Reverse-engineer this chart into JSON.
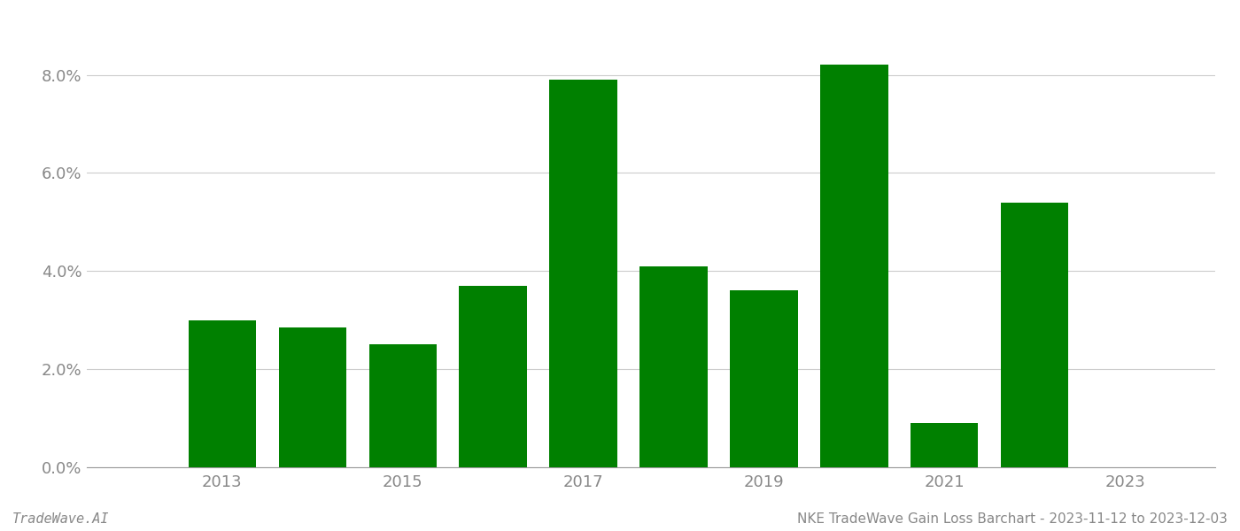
{
  "years": [
    2013,
    2014,
    2015,
    2016,
    2017,
    2018,
    2019,
    2020,
    2021,
    2022
  ],
  "values": [
    0.03,
    0.0285,
    0.025,
    0.037,
    0.079,
    0.041,
    0.036,
    0.082,
    0.009,
    0.054
  ],
  "bar_color": "#008000",
  "background_color": "#ffffff",
  "ylim": [
    0,
    0.092
  ],
  "yticks": [
    0.0,
    0.02,
    0.04,
    0.06,
    0.08
  ],
  "xtick_labels": [
    "2013",
    "2015",
    "2017",
    "2019",
    "2021",
    "2023"
  ],
  "xtick_positions": [
    2013,
    2015,
    2017,
    2019,
    2021,
    2023
  ],
  "xlim": [
    2011.5,
    2024.0
  ],
  "footer_left": "TradeWave.AI",
  "footer_right": "NKE TradeWave Gain Loss Barchart - 2023-11-12 to 2023-12-03",
  "grid_color": "#cccccc",
  "axis_color": "#999999",
  "tick_color": "#888888",
  "bar_width": 0.75,
  "figsize": [
    14.0,
    6.0
  ],
  "dpi": 100,
  "tick_fontsize": 13,
  "footer_fontsize": 11
}
